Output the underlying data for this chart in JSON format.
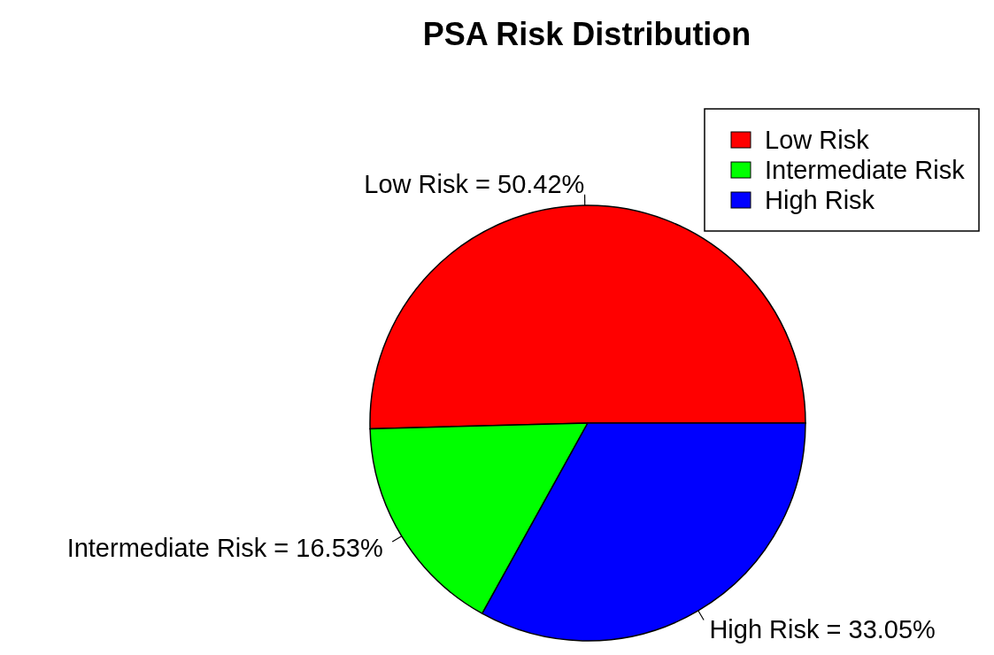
{
  "chart_data": {
    "type": "pie",
    "title": "PSA Risk Distribution",
    "categories": [
      "Low Risk",
      "Intermediate Risk",
      "High Risk"
    ],
    "values": [
      50.42,
      16.53,
      33.05
    ],
    "colors": [
      "#ff0000",
      "#00ff00",
      "#0000ff"
    ],
    "value_labels": [
      "Low Risk = 50.42%",
      "Intermediate Risk = 16.53%",
      "High Risk = 33.05%"
    ],
    "legend": "top right"
  }
}
